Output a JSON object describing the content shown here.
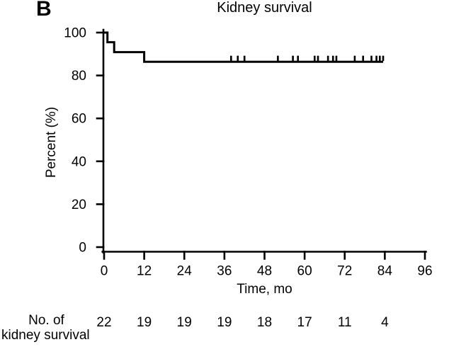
{
  "panel_label": "B",
  "chart_data": {
    "type": "line",
    "subtype": "kaplan-meier-step",
    "title": "Kidney survival",
    "xlabel": "Time, mo",
    "ylabel": "Percent (%)",
    "xlim": [
      0,
      96
    ],
    "ylim": [
      0,
      100
    ],
    "x_ticks": [
      0,
      12,
      24,
      36,
      48,
      60,
      72,
      84,
      96
    ],
    "y_ticks": [
      0,
      20,
      40,
      60,
      80,
      100
    ],
    "grid": false,
    "line_color": "#000000",
    "background_color": "#ffffff",
    "series": [
      {
        "name": "Kidney survival",
        "steps": [
          [
            0,
            100
          ],
          [
            1,
            100
          ],
          [
            1,
            95.5
          ],
          [
            3,
            95.5
          ],
          [
            3,
            90.9
          ],
          [
            12,
            90.9
          ],
          [
            12,
            86.4
          ],
          [
            83.5,
            86.4
          ]
        ],
        "censor_level": 86.4,
        "censor_times": [
          38,
          40,
          42,
          52,
          56.5,
          58,
          63,
          64,
          67,
          68.5,
          69.5,
          75,
          77.5,
          80,
          81.5,
          82.5,
          83.5
        ]
      }
    ]
  },
  "risk_table": {
    "label_line1": "No. of",
    "label_line2": "kidney survival",
    "times": [
      0,
      12,
      24,
      36,
      48,
      60,
      72,
      84
    ],
    "counts": [
      22,
      19,
      19,
      19,
      18,
      17,
      11,
      4
    ]
  }
}
